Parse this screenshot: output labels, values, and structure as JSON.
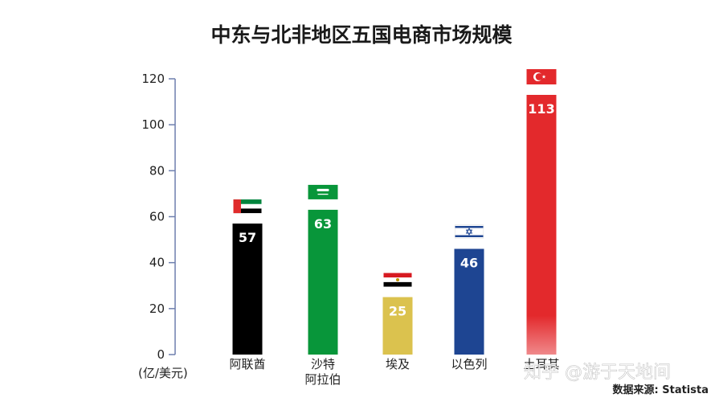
{
  "chart_data": {
    "type": "bar",
    "title": "中东与北非地区五国电商市场规模",
    "ylabel": "(亿/美元)",
    "ylim": [
      0,
      120
    ],
    "yticks": [
      0,
      20,
      40,
      60,
      80,
      100,
      120
    ],
    "grid": false,
    "legend": "none",
    "categories": [
      {
        "lines": [
          "阿联酋"
        ],
        "flag": "uae-flag-icon"
      },
      {
        "lines": [
          "沙特",
          "阿拉伯"
        ],
        "flag": "saudi-flag-icon"
      },
      {
        "lines": [
          "埃及"
        ],
        "flag": "egypt-flag-icon"
      },
      {
        "lines": [
          "以色列"
        ],
        "flag": "israel-flag-icon"
      },
      {
        "lines": [
          "土耳其"
        ],
        "flag": "turkey-flag-icon"
      }
    ],
    "values": [
      57,
      63,
      25,
      46,
      113
    ],
    "colors": [
      "#000000",
      "#08963a",
      "#dbc24e",
      "#1e4592",
      "#e3292c"
    ]
  },
  "source": "数据来源: Statista",
  "watermark": "知乎 @游于天地间"
}
